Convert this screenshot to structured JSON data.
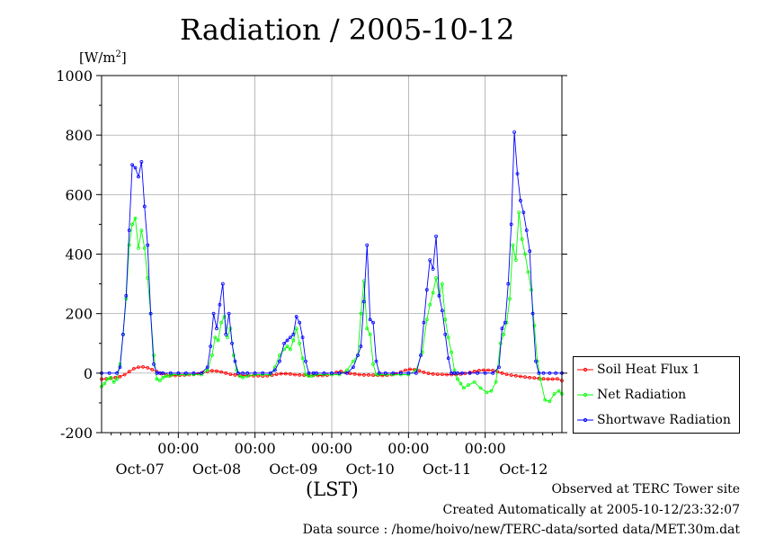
{
  "title": "Radiation / 2005-10-12",
  "unit_label": "[W/m",
  "unit_sup": "2",
  "unit_close": "]",
  "xaxis_label": "(LST)",
  "footer": {
    "line1": "Observed at TERC Tower site",
    "line2": "Created Automatically at 2005-10-12/23:32:07",
    "line3": "Data source : /home/hoivo/new/TERC-data/sorted  data/MET.30m.dat"
  },
  "chart_data": {
    "type": "line",
    "ylim": [
      -200,
      1000
    ],
    "yticks": [
      "-200",
      "0",
      "200",
      "400",
      "600",
      "800",
      "1000"
    ],
    "xlim": [
      0,
      6
    ],
    "time_label": "00:00",
    "date_labels": [
      "Oct-07",
      "Oct-08",
      "Oct-09",
      "Oct-10",
      "Oct-11",
      "Oct-12"
    ],
    "grid": true,
    "legend_position": "right",
    "series": [
      {
        "name": "Soil Heat Flux 1",
        "color": "#ff0000",
        "x": [
          0,
          0.06,
          0.12,
          0.18,
          0.24,
          0.3,
          0.36,
          0.42,
          0.48,
          0.54,
          0.6,
          0.66,
          0.72,
          0.78,
          0.84,
          0.9,
          0.96,
          1.02,
          1.08,
          1.14,
          1.2,
          1.26,
          1.32,
          1.38,
          1.44,
          1.5,
          1.56,
          1.62,
          1.68,
          1.74,
          1.8,
          1.86,
          1.92,
          1.98,
          2.04,
          2.1,
          2.16,
          2.22,
          2.28,
          2.34,
          2.4,
          2.46,
          2.52,
          2.58,
          2.64,
          2.7,
          2.76,
          2.82,
          2.88,
          2.94,
          3.0,
          3.06,
          3.12,
          3.18,
          3.24,
          3.3,
          3.36,
          3.42,
          3.48,
          3.54,
          3.6,
          3.66,
          3.72,
          3.78,
          3.84,
          3.9,
          3.96,
          4.02,
          4.08,
          4.14,
          4.2,
          4.26,
          4.32,
          4.38,
          4.44,
          4.5,
          4.56,
          4.62,
          4.68,
          4.74,
          4.8,
          4.86,
          4.92,
          4.98,
          5.04,
          5.1,
          5.16,
          5.22,
          5.28,
          5.34,
          5.4,
          5.46,
          5.52,
          5.58,
          5.64,
          5.7,
          5.76,
          5.82,
          5.88,
          5.94,
          6.0
        ],
        "y": [
          -20,
          -19,
          -17,
          -15,
          -12,
          -5,
          5,
          15,
          20,
          21,
          18,
          12,
          5,
          -2,
          -6,
          -8,
          -8,
          -7,
          -6,
          -5,
          -4,
          -2,
          2,
          6,
          8,
          7,
          4,
          0,
          -4,
          -6,
          -7,
          -8,
          -8,
          -9,
          -9,
          -10,
          -9,
          -7,
          -4,
          -2,
          -2,
          -3,
          -5,
          -6,
          -7,
          -7,
          -7,
          -8,
          -8,
          -7,
          -5,
          3,
          6,
          2,
          -1,
          -3,
          -5,
          -6,
          -6,
          -7,
          -7,
          -8,
          -7,
          -5,
          -2,
          4,
          10,
          13,
          12,
          8,
          3,
          -1,
          -3,
          -4,
          -4,
          -5,
          -5,
          -5,
          -3,
          -1,
          2,
          6,
          9,
          10,
          10,
          9,
          5,
          0,
          -4,
          -7,
          -9,
          -11,
          -13,
          -15,
          -16,
          -18,
          -19,
          -20,
          -20,
          -19,
          -25
        ]
      },
      {
        "name": "Net Radiation",
        "color": "#00ff00",
        "x": [
          0,
          0.04,
          0.08,
          0.12,
          0.16,
          0.2,
          0.24,
          0.28,
          0.32,
          0.36,
          0.4,
          0.44,
          0.48,
          0.52,
          0.56,
          0.6,
          0.64,
          0.68,
          0.72,
          0.76,
          0.8,
          0.84,
          0.88,
          0.92,
          1.0,
          1.1,
          1.2,
          1.3,
          1.38,
          1.44,
          1.48,
          1.52,
          1.56,
          1.6,
          1.64,
          1.68,
          1.72,
          1.76,
          1.8,
          1.84,
          1.9,
          2.0,
          2.1,
          2.2,
          2.26,
          2.32,
          2.38,
          2.42,
          2.46,
          2.5,
          2.54,
          2.58,
          2.62,
          2.66,
          2.7,
          2.74,
          2.8,
          2.9,
          3.0,
          3.1,
          3.2,
          3.28,
          3.34,
          3.38,
          3.42,
          3.46,
          3.5,
          3.54,
          3.58,
          3.62,
          3.7,
          3.8,
          3.9,
          4.0,
          4.1,
          4.18,
          4.24,
          4.28,
          4.32,
          4.36,
          4.4,
          4.44,
          4.48,
          4.52,
          4.56,
          4.6,
          4.64,
          4.68,
          4.72,
          4.78,
          4.86,
          4.94,
          5.02,
          5.08,
          5.14,
          5.2,
          5.24,
          5.28,
          5.32,
          5.36,
          5.4,
          5.44,
          5.48,
          5.52,
          5.56,
          5.6,
          5.64,
          5.68,
          5.72,
          5.78,
          5.84,
          5.9,
          5.96,
          6.0
        ],
        "y": [
          -45,
          -35,
          -20,
          -15,
          -30,
          -20,
          30,
          130,
          250,
          430,
          500,
          520,
          420,
          480,
          420,
          320,
          200,
          60,
          -20,
          -25,
          -15,
          -10,
          -10,
          -5,
          -5,
          -5,
          -5,
          -5,
          10,
          60,
          120,
          110,
          170,
          190,
          120,
          150,
          60,
          10,
          -10,
          -15,
          -10,
          -5,
          -5,
          -5,
          20,
          60,
          80,
          90,
          80,
          110,
          150,
          100,
          50,
          -5,
          -10,
          -10,
          -5,
          -5,
          -5,
          -5,
          10,
          40,
          60,
          200,
          310,
          150,
          130,
          30,
          -5,
          -5,
          -5,
          -5,
          -5,
          -5,
          10,
          70,
          180,
          230,
          270,
          320,
          260,
          300,
          180,
          120,
          70,
          10,
          -20,
          -35,
          -50,
          -40,
          -30,
          -50,
          -65,
          -60,
          -30,
          100,
          130,
          170,
          250,
          430,
          380,
          540,
          450,
          400,
          340,
          280,
          160,
          40,
          -20,
          -90,
          -95,
          -70,
          -60,
          -70
        ]
      },
      {
        "name": "Shortwave Radiation",
        "color": "#0000ff",
        "x": [
          0,
          0.1,
          0.2,
          0.24,
          0.28,
          0.32,
          0.36,
          0.4,
          0.44,
          0.48,
          0.52,
          0.56,
          0.6,
          0.64,
          0.68,
          0.72,
          0.76,
          0.8,
          0.9,
          1.0,
          1.1,
          1.2,
          1.3,
          1.38,
          1.42,
          1.46,
          1.5,
          1.54,
          1.58,
          1.62,
          1.66,
          1.7,
          1.74,
          1.78,
          1.84,
          1.9,
          2.0,
          2.1,
          2.2,
          2.26,
          2.32,
          2.38,
          2.42,
          2.46,
          2.5,
          2.54,
          2.58,
          2.62,
          2.66,
          2.7,
          2.76,
          2.8,
          2.9,
          3.0,
          3.1,
          3.2,
          3.28,
          3.34,
          3.38,
          3.42,
          3.46,
          3.5,
          3.54,
          3.58,
          3.62,
          3.7,
          3.8,
          3.9,
          4.0,
          4.1,
          4.16,
          4.2,
          4.24,
          4.28,
          4.32,
          4.36,
          4.4,
          4.44,
          4.48,
          4.52,
          4.56,
          4.6,
          4.64,
          4.7,
          4.8,
          4.9,
          5.0,
          5.1,
          5.18,
          5.22,
          5.26,
          5.3,
          5.34,
          5.38,
          5.42,
          5.46,
          5.5,
          5.54,
          5.58,
          5.62,
          5.66,
          5.7,
          5.76,
          5.84,
          5.92,
          6.0
        ],
        "y": [
          0,
          0,
          0,
          20,
          130,
          260,
          480,
          700,
          690,
          660,
          710,
          560,
          430,
          200,
          30,
          0,
          0,
          0,
          0,
          0,
          0,
          0,
          0,
          20,
          90,
          200,
          150,
          230,
          300,
          130,
          200,
          100,
          40,
          0,
          0,
          0,
          0,
          0,
          0,
          10,
          40,
          100,
          110,
          120,
          130,
          190,
          170,
          120,
          40,
          0,
          0,
          0,
          0,
          0,
          0,
          0,
          20,
          60,
          90,
          240,
          430,
          180,
          170,
          40,
          0,
          0,
          0,
          0,
          0,
          0,
          60,
          170,
          280,
          380,
          350,
          460,
          260,
          210,
          130,
          50,
          0,
          0,
          0,
          0,
          0,
          0,
          0,
          0,
          20,
          150,
          170,
          300,
          500,
          810,
          670,
          580,
          540,
          480,
          410,
          200,
          40,
          0,
          0,
          0,
          0,
          0
        ]
      }
    ]
  }
}
